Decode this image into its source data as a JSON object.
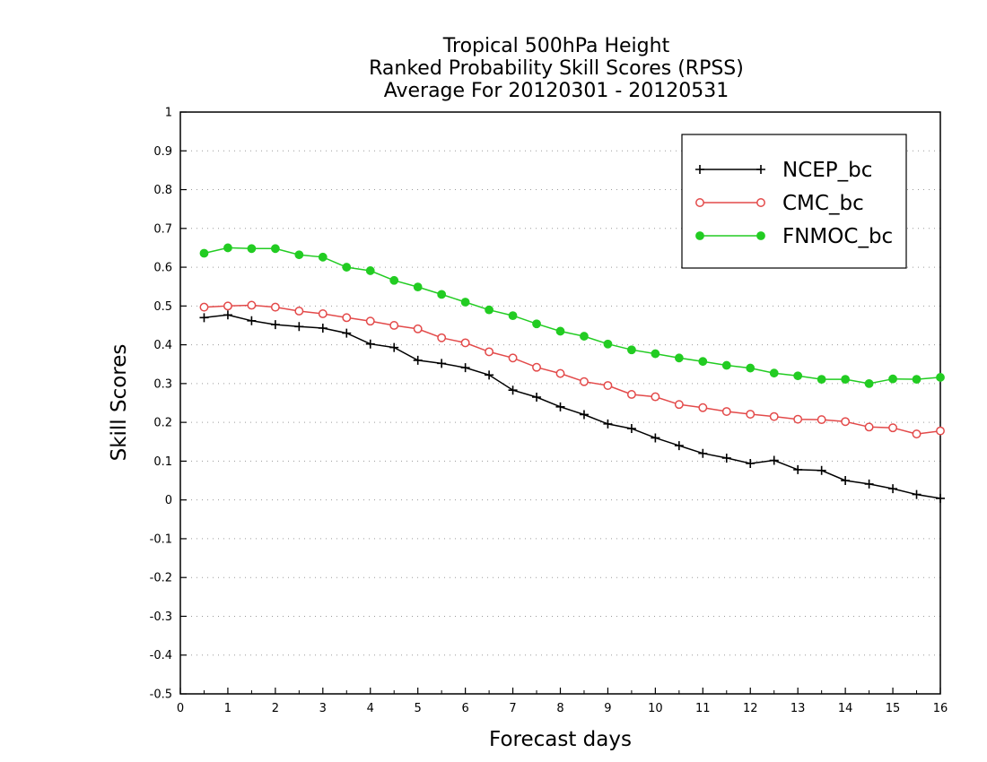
{
  "chart_data": {
    "type": "line",
    "title": [
      "Tropical 500hPa Height",
      "Ranked Probability Skill Scores (RPSS)",
      "Average For 20120301 - 20120531"
    ],
    "xlabel": "Forecast days",
    "ylabel": "Skill Scores",
    "xlim": [
      0,
      16
    ],
    "ylim": [
      -0.5,
      1
    ],
    "xticks": [
      "0",
      "1",
      "2",
      "3",
      "4",
      "5",
      "6",
      "7",
      "8",
      "9",
      "10",
      "11",
      "12",
      "13",
      "14",
      "15",
      "16"
    ],
    "yticks": [
      "-0.5",
      "-0.4",
      "-0.3",
      "-0.2",
      "-0.1",
      "0",
      "0.1",
      "0.2",
      "0.3",
      "0.4",
      "0.5",
      "0.6",
      "0.7",
      "0.8",
      "0.9",
      "1"
    ],
    "grid": "horizontal-dotted",
    "legend_position": "top-right",
    "x": [
      0.5,
      1,
      1.5,
      2,
      2.5,
      3,
      3.5,
      4,
      4.5,
      5,
      5.5,
      6,
      6.5,
      7,
      7.5,
      8,
      8.5,
      9,
      9.5,
      10,
      10.5,
      11,
      11.5,
      12,
      12.5,
      13,
      13.5,
      14,
      14.5,
      15,
      15.5,
      16
    ],
    "series": [
      {
        "name": "NCEP_bc",
        "color": "#000000",
        "marker": "plus",
        "values": [
          0.47,
          0.477,
          0.462,
          0.452,
          0.447,
          0.443,
          0.43,
          0.402,
          0.393,
          0.36,
          0.352,
          0.341,
          0.322,
          0.283,
          0.265,
          0.24,
          0.22,
          0.196,
          0.184,
          0.16,
          0.14,
          0.12,
          0.108,
          0.094,
          0.102,
          0.078,
          0.076,
          0.05,
          0.041,
          0.029,
          0.014,
          0.004
        ]
      },
      {
        "name": "CMC_bc",
        "color": "#e34a4a",
        "marker": "open-circle",
        "values": [
          0.497,
          0.5,
          0.502,
          0.497,
          0.487,
          0.48,
          0.47,
          0.461,
          0.45,
          0.441,
          0.418,
          0.405,
          0.382,
          0.366,
          0.342,
          0.326,
          0.305,
          0.295,
          0.272,
          0.266,
          0.246,
          0.238,
          0.228,
          0.221,
          0.215,
          0.208,
          0.207,
          0.202,
          0.188,
          0.186,
          0.17,
          0.178
        ]
      },
      {
        "name": "FNMOC_bc",
        "color": "#22cc22",
        "marker": "filled-circle",
        "values": [
          0.636,
          0.65,
          0.648,
          0.648,
          0.632,
          0.626,
          0.6,
          0.591,
          0.566,
          0.549,
          0.53,
          0.51,
          0.49,
          0.475,
          0.454,
          0.435,
          0.422,
          0.402,
          0.387,
          0.377,
          0.366,
          0.357,
          0.347,
          0.34,
          0.327,
          0.32,
          0.311,
          0.311,
          0.3,
          0.312,
          0.311,
          0.316
        ]
      }
    ]
  }
}
